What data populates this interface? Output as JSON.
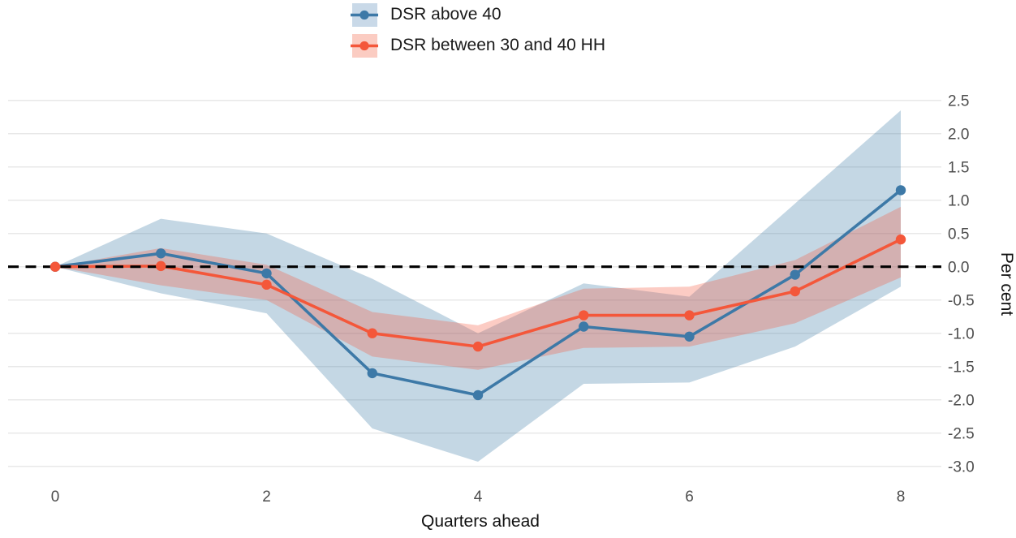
{
  "legend": {
    "position": "top",
    "items": [
      {
        "label": "DSR above 40",
        "color": "#3d79a7",
        "fill": "#c9d9e8"
      },
      {
        "label": "DSR between 30 and 40 HH",
        "color": "#f4573a",
        "fill": "#fbccc2"
      }
    ]
  },
  "chart_data": {
    "type": "line",
    "title": "",
    "xlabel": "Quarters ahead",
    "ylabel": "Per cent",
    "x": [
      0,
      1,
      2,
      3,
      4,
      5,
      6,
      7,
      8
    ],
    "x_ticks": [
      {
        "v": 0,
        "label": "0"
      },
      {
        "v": 2,
        "label": "2"
      },
      {
        "v": 4,
        "label": "4"
      },
      {
        "v": 6,
        "label": "6"
      },
      {
        "v": 8,
        "label": "8"
      }
    ],
    "y_ticks": [
      {
        "v": 2.5,
        "label": "2.5"
      },
      {
        "v": 2.0,
        "label": "2.0"
      },
      {
        "v": 1.5,
        "label": "1.5"
      },
      {
        "v": 1.0,
        "label": "1.0"
      },
      {
        "v": 0.5,
        "label": "0.5"
      },
      {
        "v": 0.0,
        "label": "0.0"
      },
      {
        "v": -0.5,
        "label": "-0.5"
      },
      {
        "v": -1.0,
        "label": "-1.0"
      },
      {
        "v": -1.5,
        "label": "-1.5"
      },
      {
        "v": -2.0,
        "label": "-2.0"
      },
      {
        "v": -2.5,
        "label": "-2.5"
      },
      {
        "v": -3.0,
        "label": "-3.0"
      }
    ],
    "xlim": [
      0,
      8
    ],
    "ylim": [
      -3.0,
      2.5
    ],
    "grid": true,
    "y_axis_side": "right",
    "zero_line": 0.0,
    "zero_line_style": "dashed-black",
    "series": [
      {
        "name": "DSR above 40",
        "color": "#3d79a7",
        "band_fill": "#3d79a7",
        "values": [
          0,
          0.2,
          -0.1,
          -1.6,
          -1.93,
          -0.9,
          -1.05,
          -0.12,
          1.15
        ],
        "band_upper": [
          0,
          0.72,
          0.5,
          -0.18,
          -1.0,
          -0.25,
          -0.45,
          0.95,
          2.35
        ],
        "band_lower": [
          0,
          -0.4,
          -0.7,
          -2.43,
          -2.93,
          -1.76,
          -1.74,
          -1.2,
          -0.3
        ]
      },
      {
        "name": "DSR between 30 and 40 HH",
        "color": "#f4573a",
        "band_fill": "#f4573a",
        "values": [
          0,
          0.01,
          -0.27,
          -1.0,
          -1.2,
          -0.73,
          -0.73,
          -0.37,
          0.41
        ],
        "band_upper": [
          0,
          0.28,
          0.03,
          -0.68,
          -0.88,
          -0.33,
          -0.3,
          0.1,
          0.9
        ],
        "band_lower": [
          0,
          -0.28,
          -0.5,
          -1.35,
          -1.55,
          -1.22,
          -1.2,
          -0.85,
          -0.16
        ]
      }
    ],
    "styles": {
      "grid_color": "#e8e8e8",
      "band_opacity": 0.3,
      "line_width": 3.6,
      "point_radius": 6.2,
      "zero_dash": "13 8.5",
      "zero_width": 3.2,
      "zero_color": "#000000"
    }
  }
}
